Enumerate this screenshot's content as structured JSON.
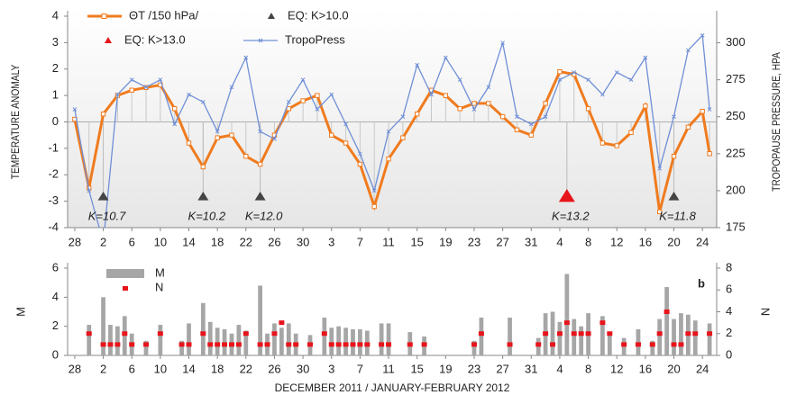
{
  "chart_data": [
    {
      "type": "line",
      "ylabel": "TEMPERATURE ANOMALY",
      "y2label": "TROPOPAUSE PRESSURE, HPA",
      "xlim": [
        -1,
        90
      ],
      "xticks": [
        {
          "value": 0,
          "label": "28"
        },
        {
          "value": 4,
          "label": "2"
        },
        {
          "value": 8,
          "label": "6"
        },
        {
          "value": 12,
          "label": "10"
        },
        {
          "value": 16,
          "label": "14"
        },
        {
          "value": 20,
          "label": "18"
        },
        {
          "value": 24,
          "label": "22"
        },
        {
          "value": 28,
          "label": "26"
        },
        {
          "value": 32,
          "label": "30"
        },
        {
          "value": 36,
          "label": "3"
        },
        {
          "value": 40,
          "label": "7"
        },
        {
          "value": 44,
          "label": "11"
        },
        {
          "value": 48,
          "label": "15"
        },
        {
          "value": 52,
          "label": "19"
        },
        {
          "value": 56,
          "label": "23"
        },
        {
          "value": 60,
          "label": "27"
        },
        {
          "value": 64,
          "label": "31"
        },
        {
          "value": 68,
          "label": "4"
        },
        {
          "value": 72,
          "label": "8"
        },
        {
          "value": 76,
          "label": "12"
        },
        {
          "value": 80,
          "label": "16"
        },
        {
          "value": 84,
          "label": "20"
        },
        {
          "value": 88,
          "label": "24"
        }
      ],
      "ylim": [
        -4,
        4
      ],
      "yticks": [
        -4,
        -3,
        -2,
        -1,
        0,
        1,
        2,
        3,
        4
      ],
      "y2lim": [
        175,
        318
      ],
      "y2ticks": [
        175,
        200,
        225,
        250,
        275,
        300
      ],
      "x": [
        0,
        2,
        4,
        6,
        8,
        10,
        12,
        14,
        16,
        18,
        20,
        22,
        24,
        26,
        28,
        30,
        32,
        34,
        36,
        38,
        40,
        42,
        44,
        46,
        48,
        50,
        52,
        54,
        56,
        58,
        60,
        62,
        64,
        66,
        68,
        70,
        72,
        74,
        76,
        78,
        80,
        82,
        84,
        86,
        88,
        89
      ],
      "series": [
        {
          "name": "ΘT /150 hPa/",
          "color": "#f07b1e",
          "values": [
            0.1,
            -2.5,
            0.3,
            1.0,
            1.2,
            1.3,
            1.4,
            0.5,
            -0.8,
            -1.7,
            -0.6,
            -0.5,
            -1.3,
            -1.6,
            -0.5,
            0.5,
            0.8,
            1.0,
            -0.5,
            -0.8,
            -1.6,
            -3.2,
            -1.4,
            -0.6,
            0.3,
            1.2,
            1.0,
            0.5,
            0.7,
            0.7,
            0.2,
            -0.3,
            -0.5,
            0.7,
            1.9,
            1.8,
            0.5,
            -0.8,
            -0.9,
            -0.4,
            0.6,
            -3.4,
            -1.3,
            -0.2,
            0.4,
            -1.2
          ]
        },
        {
          "name": "TropoPress",
          "color": "#6f8fd6",
          "axis": "y2",
          "values": [
            255,
            200,
            165,
            265,
            275,
            270,
            275,
            245,
            265,
            260,
            240,
            270,
            290,
            240,
            235,
            260,
            275,
            255,
            265,
            245,
            225,
            200,
            240,
            250,
            285,
            265,
            290,
            275,
            255,
            270,
            300,
            250,
            245,
            250,
            275,
            280,
            275,
            265,
            280,
            275,
            290,
            215,
            250,
            295,
            305,
            255
          ]
        }
      ],
      "events": [
        {
          "name": "EQ: K>10.0",
          "color": "#444444",
          "x": [
            4,
            18,
            26,
            84
          ],
          "labels": [
            "K=10.7",
            "K=10.2",
            "K=12.0",
            "K=11.8"
          ]
        },
        {
          "name": "EQ: K>13.0",
          "color": "#e8141b",
          "x": [
            69
          ],
          "labels": [
            "K=13.2"
          ]
        }
      ]
    },
    {
      "type": "bar",
      "ylabel": "M",
      "y2label": "N",
      "panel": "b",
      "xlabel": "DECEMBER  2011 / JANUARY-FEBRUARY  2012",
      "xlim": [
        -1,
        90
      ],
      "xticks": [
        {
          "value": 0,
          "label": "28"
        },
        {
          "value": 4,
          "label": "2"
        },
        {
          "value": 8,
          "label": "6"
        },
        {
          "value": 12,
          "label": "10"
        },
        {
          "value": 16,
          "label": "14"
        },
        {
          "value": 20,
          "label": "18"
        },
        {
          "value": 24,
          "label": "22"
        },
        {
          "value": 28,
          "label": "26"
        },
        {
          "value": 32,
          "label": "30"
        },
        {
          "value": 36,
          "label": "3"
        },
        {
          "value": 40,
          "label": "7"
        },
        {
          "value": 44,
          "label": "11"
        },
        {
          "value": 48,
          "label": "15"
        },
        {
          "value": 52,
          "label": "19"
        },
        {
          "value": 56,
          "label": "23"
        },
        {
          "value": 60,
          "label": "27"
        },
        {
          "value": 64,
          "label": "31"
        },
        {
          "value": 68,
          "label": "4"
        },
        {
          "value": 72,
          "label": "8"
        },
        {
          "value": 76,
          "label": "12"
        },
        {
          "value": 80,
          "label": "16"
        },
        {
          "value": 84,
          "label": "20"
        },
        {
          "value": 88,
          "label": "24"
        }
      ],
      "ylim": [
        0,
        6
      ],
      "yticks": [
        0,
        2,
        4,
        6
      ],
      "y2lim": [
        0,
        8
      ],
      "y2ticks": [
        0,
        2,
        4,
        6,
        8
      ],
      "x": [
        2,
        4,
        5,
        6,
        7,
        8,
        10,
        12,
        15,
        16,
        18,
        19,
        20,
        21,
        22,
        23,
        24,
        26,
        27,
        28,
        29,
        30,
        31,
        33,
        35,
        36,
        37,
        38,
        39,
        40,
        41,
        43,
        44,
        47,
        49,
        56,
        57,
        61,
        65,
        66,
        67,
        68,
        69,
        70,
        71,
        72,
        74,
        75,
        77,
        79,
        81,
        82,
        83,
        84,
        85,
        86,
        87,
        89
      ],
      "series": [
        {
          "name": "M",
          "color": "#a6a6a6",
          "values": [
            2.1,
            4.0,
            2.1,
            2.0,
            2.7,
            1.5,
            1.0,
            2.1,
            1.0,
            2.2,
            3.6,
            2.3,
            1.9,
            1.8,
            1.5,
            2.1,
            1.7,
            4.8,
            1.5,
            2.2,
            1.9,
            2.2,
            1.5,
            1.4,
            2.6,
            1.9,
            2.0,
            1.9,
            1.8,
            1.8,
            1.7,
            2.2,
            2.2,
            1.6,
            1.3,
            1.0,
            2.6,
            2.6,
            1.2,
            2.9,
            3.0,
            2.3,
            5.6,
            2.5,
            2.0,
            2.9,
            2.7,
            1.4,
            1.2,
            1.8,
            1.0,
            2.5,
            4.7,
            2.5,
            2.9,
            2.8,
            2.4,
            2.2
          ]
        },
        {
          "name": "N",
          "color": "#e8141b",
          "axis": "y2",
          "values": [
            2,
            1,
            1,
            1,
            2,
            1,
            1,
            2,
            1,
            1,
            2,
            1,
            1,
            1,
            1,
            1,
            2,
            1,
            1,
            2,
            3,
            1,
            1,
            1,
            2,
            1,
            1,
            1,
            1,
            1,
            1,
            1,
            1,
            1,
            1,
            1,
            2,
            1,
            1,
            2,
            1,
            2,
            3,
            2,
            2,
            2,
            3,
            2,
            1,
            1,
            1,
            2,
            4,
            1,
            1,
            2,
            2,
            2
          ]
        }
      ]
    }
  ]
}
